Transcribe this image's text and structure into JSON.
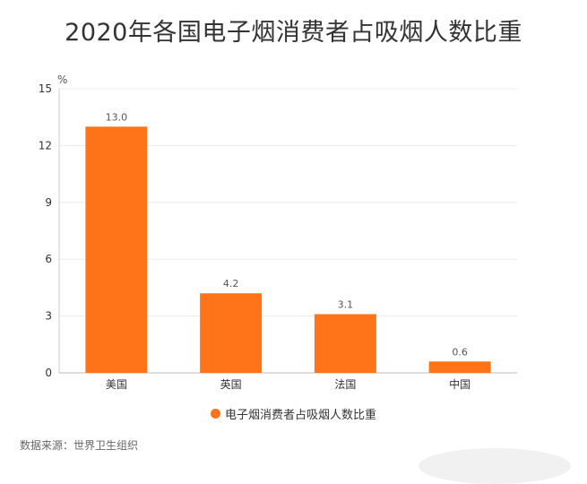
{
  "title": "2020年各国电子烟消费者占吸烟人数比重",
  "source": "数据来源：世界卫生组织",
  "chart_data": {
    "type": "bar",
    "title": "2020年各国电子烟消费者占吸烟人数比重",
    "unit_label": "%",
    "categories": [
      "美国",
      "英国",
      "法国",
      "中国"
    ],
    "series": [
      {
        "name": "电子烟消费者占吸烟人数比重",
        "values": [
          13.0,
          4.2,
          3.1,
          0.6
        ]
      }
    ],
    "data_labels": [
      "13.0",
      "4.2",
      "3.1",
      "0.6"
    ],
    "yticks": [
      "0",
      "3",
      "6",
      "9",
      "12",
      "15"
    ],
    "ylim": [
      0,
      15
    ],
    "grid": true,
    "legend_position": "bottom",
    "bar_color": "#ff7419"
  }
}
